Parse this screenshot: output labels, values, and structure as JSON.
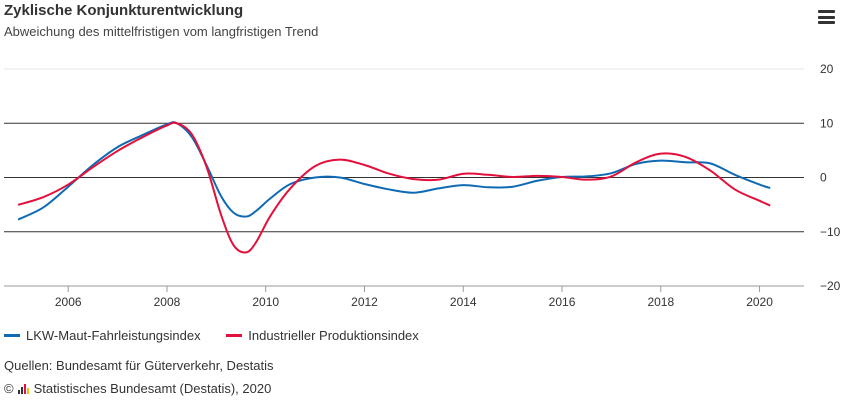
{
  "title": "Zyklische Konjunkturentwicklung",
  "subtitle": "Abweichung des mittelfristigen vom langfristigen Trend",
  "sources": "Quellen: Bundesamt für Güterverkehr, Destatis",
  "copyright_symbol": "©",
  "copyright_text": "Statistisches Bundesamt (Destatis), 2020",
  "menu_icon": "hamburger-menu-icon",
  "colors": {
    "lkw": "#0f6ab4",
    "industrie": "#e3103b",
    "grid": "#e6e6e6",
    "zero_line": "#333333"
  },
  "chart_data": {
    "type": "line",
    "title": "Zyklische Konjunkturentwicklung",
    "subtitle": "Abweichung des mittelfristigen vom langfristigen Trend",
    "xlim": [
      2004.7,
      2020.9
    ],
    "ylim": [
      -20,
      20
    ],
    "x_ticks": [
      2006,
      2008,
      2010,
      2012,
      2014,
      2016,
      2018,
      2020
    ],
    "y_ticks": [
      20,
      10,
      0,
      -10,
      -20
    ],
    "y_axis_position": "right",
    "emphasized_gridlines": [
      10,
      0,
      -10
    ],
    "legend_position": "bottom-left",
    "series": [
      {
        "name": "LKW-Maut-Fahrleistungsindex",
        "color": "#0f6ab4",
        "x": [
          2005.0,
          2005.5,
          2006.0,
          2006.5,
          2007.0,
          2007.5,
          2008.0,
          2008.2,
          2008.5,
          2008.8,
          2009.1,
          2009.35,
          2009.6,
          2009.8,
          2010.1,
          2010.5,
          2011.0,
          2011.5,
          2012.0,
          2012.5,
          2013.0,
          2013.5,
          2014.0,
          2014.5,
          2015.0,
          2015.5,
          2016.0,
          2016.5,
          2017.0,
          2017.5,
          2018.0,
          2018.5,
          2019.0,
          2019.5,
          2020.0,
          2020.2
        ],
        "y": [
          -7.7,
          -5.5,
          -1.7,
          2.3,
          5.6,
          7.8,
          9.8,
          10.0,
          7.5,
          2.3,
          -3.5,
          -6.5,
          -7.2,
          -6.2,
          -3.8,
          -1.2,
          0.0,
          0.0,
          -1.2,
          -2.2,
          -2.8,
          -2.0,
          -1.4,
          -1.8,
          -1.7,
          -0.6,
          0.1,
          0.2,
          0.8,
          2.5,
          3.1,
          2.8,
          2.6,
          0.5,
          -1.3,
          -1.9
        ]
      },
      {
        "name": "Industrieller Produktionsindex",
        "color": "#e3103b",
        "x": [
          2005.0,
          2005.5,
          2006.0,
          2006.5,
          2007.0,
          2007.5,
          2008.0,
          2008.2,
          2008.5,
          2008.8,
          2009.1,
          2009.35,
          2009.6,
          2009.8,
          2010.1,
          2010.5,
          2011.0,
          2011.5,
          2012.0,
          2012.5,
          2013.0,
          2013.5,
          2014.0,
          2014.5,
          2015.0,
          2015.5,
          2016.0,
          2016.5,
          2017.0,
          2017.5,
          2018.0,
          2018.5,
          2019.0,
          2019.5,
          2020.0,
          2020.2
        ],
        "y": [
          -5.0,
          -3.6,
          -1.3,
          1.9,
          4.9,
          7.4,
          9.6,
          10.0,
          8.0,
          2.0,
          -7.0,
          -12.5,
          -13.8,
          -12.0,
          -7.0,
          -2.0,
          2.1,
          3.3,
          2.3,
          0.7,
          -0.3,
          -0.4,
          0.7,
          0.5,
          0.1,
          0.3,
          0.1,
          -0.4,
          0.2,
          2.8,
          4.4,
          3.8,
          1.3,
          -2.2,
          -4.3,
          -5.1
        ]
      }
    ]
  }
}
